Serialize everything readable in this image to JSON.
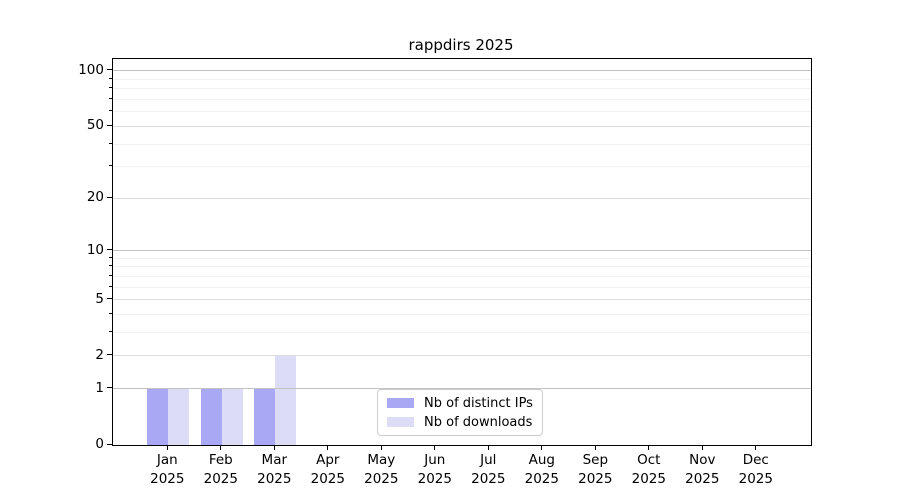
{
  "title": "rappdirs 2025",
  "chart_data": {
    "type": "bar",
    "title": "rappdirs 2025",
    "categories": [
      "Jan",
      "Feb",
      "Mar",
      "Apr",
      "May",
      "Jun",
      "Jul",
      "Aug",
      "Sep",
      "Oct",
      "Nov",
      "Dec"
    ],
    "x_year_label": "2025",
    "series": [
      {
        "name": "Nb of distinct IPs",
        "color": "#a8a8f5",
        "values": [
          1,
          1,
          1,
          0,
          0,
          0,
          0,
          0,
          0,
          0,
          0,
          0
        ]
      },
      {
        "name": "Nb of downloads",
        "color": "#dcdcf7",
        "values": [
          1,
          1,
          2,
          0,
          0,
          0,
          0,
          0,
          0,
          0,
          0,
          0
        ]
      }
    ],
    "yscale": "log1p",
    "ylim": [
      0,
      116
    ],
    "y_major_ticks": [
      0,
      1,
      2,
      5,
      10,
      20,
      50,
      100
    ],
    "y_minor_ticks": [
      3,
      4,
      6,
      7,
      8,
      9,
      30,
      40,
      60,
      70,
      80,
      90
    ],
    "grid": "on",
    "grid_colors": {
      "decade": "#c3c3c3",
      "major": "#dcdcdc",
      "minor": "#f1f1f1"
    },
    "legend_position": "bottom-center",
    "axis_color": "#000000",
    "background_color": "#ffffff"
  }
}
